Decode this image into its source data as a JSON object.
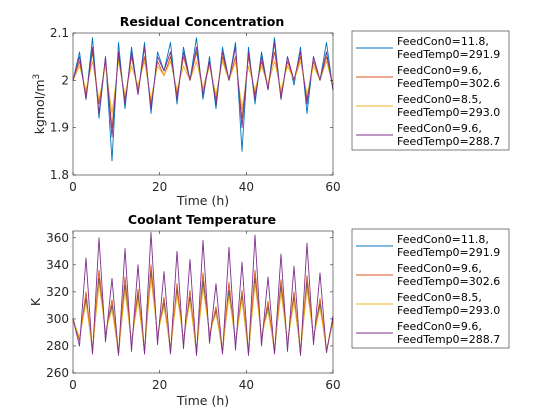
{
  "figure": {
    "background": "#ffffff"
  },
  "legend_entries": [
    {
      "line1": "FeedCon0=11.8,",
      "line2": "FeedTemp0=291.9",
      "color": "#0072bd"
    },
    {
      "line1": "FeedCon0=9.6,",
      "line2": "FeedTemp0=302.6",
      "color": "#d95319"
    },
    {
      "line1": "FeedCon0=8.5,",
      "line2": "FeedTemp0=293.0",
      "color": "#edb120"
    },
    {
      "line1": "FeedCon0=9.6,",
      "line2": "FeedTemp0=288.7",
      "color": "#7e2f8e"
    }
  ],
  "chart_data": [
    {
      "type": "line",
      "title": "Residual Concentration",
      "xlabel": "Time (h)",
      "ylabel": "kgmol/m",
      "ylabel_superscript": "3",
      "xlim": [
        0,
        60
      ],
      "ylim": [
        1.8,
        2.1
      ],
      "xticks": [
        "0",
        "20",
        "40",
        "60"
      ],
      "yticks": [
        "1.8",
        "1.9",
        "2",
        "2.1"
      ],
      "legend_position": "outside-right",
      "series_names": [
        "FeedCon0=11.8, FeedTemp0=291.9",
        "FeedCon0=9.6, FeedTemp0=302.6",
        "FeedCon0=8.5, FeedTemp0=293.0",
        "FeedCon0=9.6, FeedTemp0=288.7"
      ],
      "x": [
        0,
        1.5,
        3,
        4.5,
        6,
        7.5,
        9,
        10.5,
        12,
        13.5,
        15,
        16.5,
        18,
        19.5,
        21,
        22.5,
        24,
        25.5,
        27,
        28.5,
        30,
        31.5,
        33,
        34.5,
        36,
        37.5,
        39,
        40.5,
        42,
        43.5,
        45,
        46.5,
        48,
        49.5,
        51,
        52.5,
        54,
        55.5,
        57,
        58.5,
        60
      ],
      "series": [
        {
          "name": "FeedCon0=11.8, FeedTemp0=291.9",
          "values": [
            2.0,
            2.06,
            1.96,
            2.09,
            1.92,
            2.05,
            1.83,
            2.08,
            1.94,
            2.07,
            1.97,
            2.08,
            1.93,
            2.06,
            2.02,
            2.08,
            1.95,
            2.07,
            2.0,
            2.09,
            1.96,
            2.05,
            1.94,
            2.07,
            2.0,
            2.08,
            1.85,
            2.07,
            1.95,
            2.06,
            1.98,
            2.09,
            1.96,
            2.05,
            1.99,
            2.07,
            1.93,
            2.05,
            2.0,
            2.08,
            1.98
          ]
        },
        {
          "name": "FeedCon0=9.6, FeedTemp0=302.6",
          "values": [
            2.0,
            2.04,
            1.97,
            2.06,
            1.95,
            2.04,
            1.9,
            2.05,
            1.96,
            2.05,
            1.98,
            2.05,
            1.95,
            2.04,
            2.01,
            2.05,
            1.97,
            2.05,
            2.0,
            2.06,
            1.98,
            2.04,
            1.96,
            2.05,
            2.0,
            2.05,
            1.92,
            2.05,
            1.97,
            2.04,
            1.99,
            2.06,
            1.97,
            2.04,
            2.0,
            2.05,
            1.96,
            2.04,
            2.0,
            2.05,
            1.99
          ]
        },
        {
          "name": "FeedCon0=8.5, FeedTemp0=293.0",
          "values": [
            2.0,
            2.03,
            1.98,
            2.04,
            1.96,
            2.03,
            1.93,
            2.04,
            1.97,
            2.03,
            1.99,
            2.04,
            1.96,
            2.03,
            2.01,
            2.04,
            1.98,
            2.03,
            2.0,
            2.04,
            1.98,
            2.03,
            1.97,
            2.04,
            2.0,
            2.04,
            1.94,
            2.03,
            1.98,
            2.03,
            1.99,
            2.04,
            1.98,
            2.03,
            2.0,
            2.04,
            1.97,
            2.03,
            2.0,
            2.04,
            1.99
          ]
        },
        {
          "name": "FeedCon0=9.6, FeedTemp0=288.7",
          "values": [
            2.0,
            2.05,
            1.96,
            2.07,
            1.93,
            2.05,
            1.88,
            2.06,
            1.95,
            2.06,
            1.97,
            2.07,
            1.94,
            2.05,
            2.02,
            2.06,
            1.96,
            2.06,
            2.0,
            2.07,
            1.97,
            2.04,
            1.95,
            2.06,
            2.0,
            2.07,
            1.9,
            2.06,
            1.96,
            2.05,
            1.98,
            2.08,
            1.96,
            2.05,
            2.0,
            2.06,
            1.95,
            2.05,
            2.0,
            2.06,
            1.98
          ]
        }
      ]
    },
    {
      "type": "line",
      "title": "Coolant Temperature",
      "xlabel": "Time (h)",
      "ylabel": "K",
      "xlim": [
        0,
        60
      ],
      "ylim": [
        260,
        365
      ],
      "xticks": [
        "0",
        "20",
        "40",
        "60"
      ],
      "yticks": [
        "260",
        "280",
        "300",
        "320",
        "340",
        "360"
      ],
      "legend_position": "outside-right",
      "series_names": [
        "FeedCon0=11.8, FeedTemp0=291.9",
        "FeedCon0=9.6, FeedTemp0=302.6",
        "FeedCon0=8.5, FeedTemp0=293.0",
        "FeedCon0=9.6, FeedTemp0=288.7"
      ],
      "x": [
        0,
        1.5,
        3,
        4.5,
        6,
        7.5,
        9,
        10.5,
        12,
        13.5,
        15,
        16.5,
        18,
        19.5,
        21,
        22.5,
        24,
        25.5,
        27,
        28.5,
        30,
        31.5,
        33,
        34.5,
        36,
        37.5,
        39,
        40.5,
        42,
        43.5,
        45,
        46.5,
        48,
        49.5,
        51,
        52.5,
        54,
        55.5,
        57,
        58.5,
        60
      ],
      "series": [
        {
          "name": "FeedCon0=11.8, FeedTemp0=291.9",
          "values": [
            300,
            285,
            315,
            276,
            330,
            290,
            310,
            274,
            325,
            282,
            318,
            276,
            335,
            288,
            312,
            277,
            322,
            284,
            316,
            275,
            328,
            289,
            306,
            276,
            321,
            283,
            317,
            274,
            330,
            287,
            309,
            276,
            324,
            282,
            316,
            275,
            327,
            286,
            311,
            277,
            298
          ]
        },
        {
          "name": "FeedCon0=9.6, FeedTemp0=302.6",
          "values": [
            300,
            284,
            320,
            275,
            336,
            288,
            314,
            274,
            331,
            281,
            322,
            275,
            340,
            286,
            316,
            275,
            326,
            282,
            321,
            274,
            334,
            287,
            309,
            275,
            327,
            281,
            321,
            274,
            336,
            285,
            313,
            275,
            329,
            281,
            320,
            274,
            332,
            285,
            315,
            276,
            300
          ]
        },
        {
          "name": "FeedCon0=8.5, FeedTemp0=293.0",
          "values": [
            300,
            286,
            312,
            277,
            326,
            291,
            307,
            275,
            321,
            283,
            314,
            277,
            330,
            289,
            309,
            278,
            318,
            285,
            313,
            276,
            323,
            290,
            304,
            277,
            317,
            284,
            314,
            275,
            326,
            288,
            306,
            277,
            320,
            283,
            313,
            276,
            322,
            287,
            308,
            278,
            297
          ]
        },
        {
          "name": "FeedCon0=9.6, FeedTemp0=288.7",
          "values": [
            300,
            280,
            345,
            274,
            360,
            283,
            330,
            273,
            352,
            276,
            340,
            274,
            364,
            281,
            335,
            274,
            350,
            278,
            344,
            273,
            358,
            282,
            326,
            274,
            353,
            277,
            342,
            273,
            362,
            280,
            331,
            274,
            348,
            276,
            339,
            273,
            356,
            281,
            334,
            275,
            302
          ]
        }
      ]
    }
  ]
}
